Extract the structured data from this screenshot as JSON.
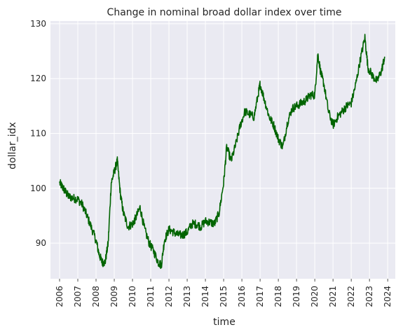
{
  "chart_data": {
    "type": "line",
    "title": "Change in nominal broad dollar index over time",
    "xlabel": "time",
    "ylabel": "dollar_idx",
    "xlim": [
      "2005-07-01",
      "2024-06-01"
    ],
    "ylim": [
      83.5,
      130.5
    ],
    "x_ticks": [
      "2006",
      "2007",
      "2008",
      "2009",
      "2010",
      "2011",
      "2012",
      "2013",
      "2014",
      "2015",
      "2016",
      "2017",
      "2018",
      "2019",
      "2020",
      "2021",
      "2022",
      "2023",
      "2024"
    ],
    "y_ticks": [
      90,
      100,
      110,
      120,
      130
    ],
    "grid": true,
    "line_color": "#006400",
    "background_color": "#eaeaf2",
    "series": [
      {
        "x": [
          "2006-01",
          "2006-03",
          "2006-05",
          "2006-07",
          "2006-10",
          "2007-01",
          "2007-04",
          "2007-07",
          "2007-10",
          "2008-01",
          "2008-03",
          "2008-05",
          "2008-07",
          "2008-09",
          "2008-11",
          "2009-01",
          "2009-03",
          "2009-05",
          "2009-07",
          "2009-10",
          "2010-01",
          "2010-03",
          "2010-06",
          "2010-09",
          "2010-12",
          "2011-03",
          "2011-06",
          "2011-08",
          "2011-10",
          "2012-01",
          "2012-04",
          "2012-07",
          "2012-10",
          "2013-01",
          "2013-04",
          "2013-07",
          "2013-10",
          "2014-01",
          "2014-04",
          "2014-07",
          "2014-10",
          "2015-01",
          "2015-03",
          "2015-06",
          "2015-09",
          "2015-12",
          "2016-03",
          "2016-06",
          "2016-09",
          "2016-12",
          "2017-01",
          "2017-04",
          "2017-07",
          "2017-10",
          "2018-01",
          "2018-04",
          "2018-07",
          "2018-10",
          "2019-01",
          "2019-04",
          "2019-07",
          "2019-10",
          "2020-01",
          "2020-03",
          "2020-05",
          "2020-07",
          "2020-10",
          "2021-01",
          "2021-04",
          "2021-07",
          "2021-10",
          "2022-01",
          "2022-04",
          "2022-07",
          "2022-10",
          "2022-12",
          "2023-03",
          "2023-06",
          "2023-09",
          "2023-11"
        ],
        "y": [
          101.0,
          100.2,
          99.3,
          98.5,
          98.2,
          98.0,
          97.0,
          95.0,
          92.8,
          90.5,
          88.0,
          86.5,
          86.5,
          90.0,
          101.0,
          103.0,
          105.0,
          99.0,
          95.5,
          93.0,
          93.5,
          94.5,
          96.5,
          92.5,
          90.0,
          88.5,
          86.5,
          86.0,
          90.5,
          92.5,
          92.0,
          91.5,
          91.5,
          92.0,
          93.5,
          93.5,
          93.0,
          94.0,
          93.8,
          93.5,
          95.5,
          101.0,
          107.5,
          105.0,
          108.0,
          111.5,
          114.0,
          113.5,
          113.0,
          117.5,
          119.0,
          116.0,
          113.0,
          111.5,
          109.0,
          107.5,
          112.0,
          114.5,
          115.0,
          115.5,
          116.0,
          117.0,
          117.0,
          124.5,
          121.0,
          119.0,
          114.0,
          111.5,
          113.0,
          114.0,
          115.0,
          115.5,
          119.0,
          123.5,
          127.5,
          122.0,
          120.5,
          119.5,
          121.5,
          124.0
        ]
      }
    ]
  }
}
